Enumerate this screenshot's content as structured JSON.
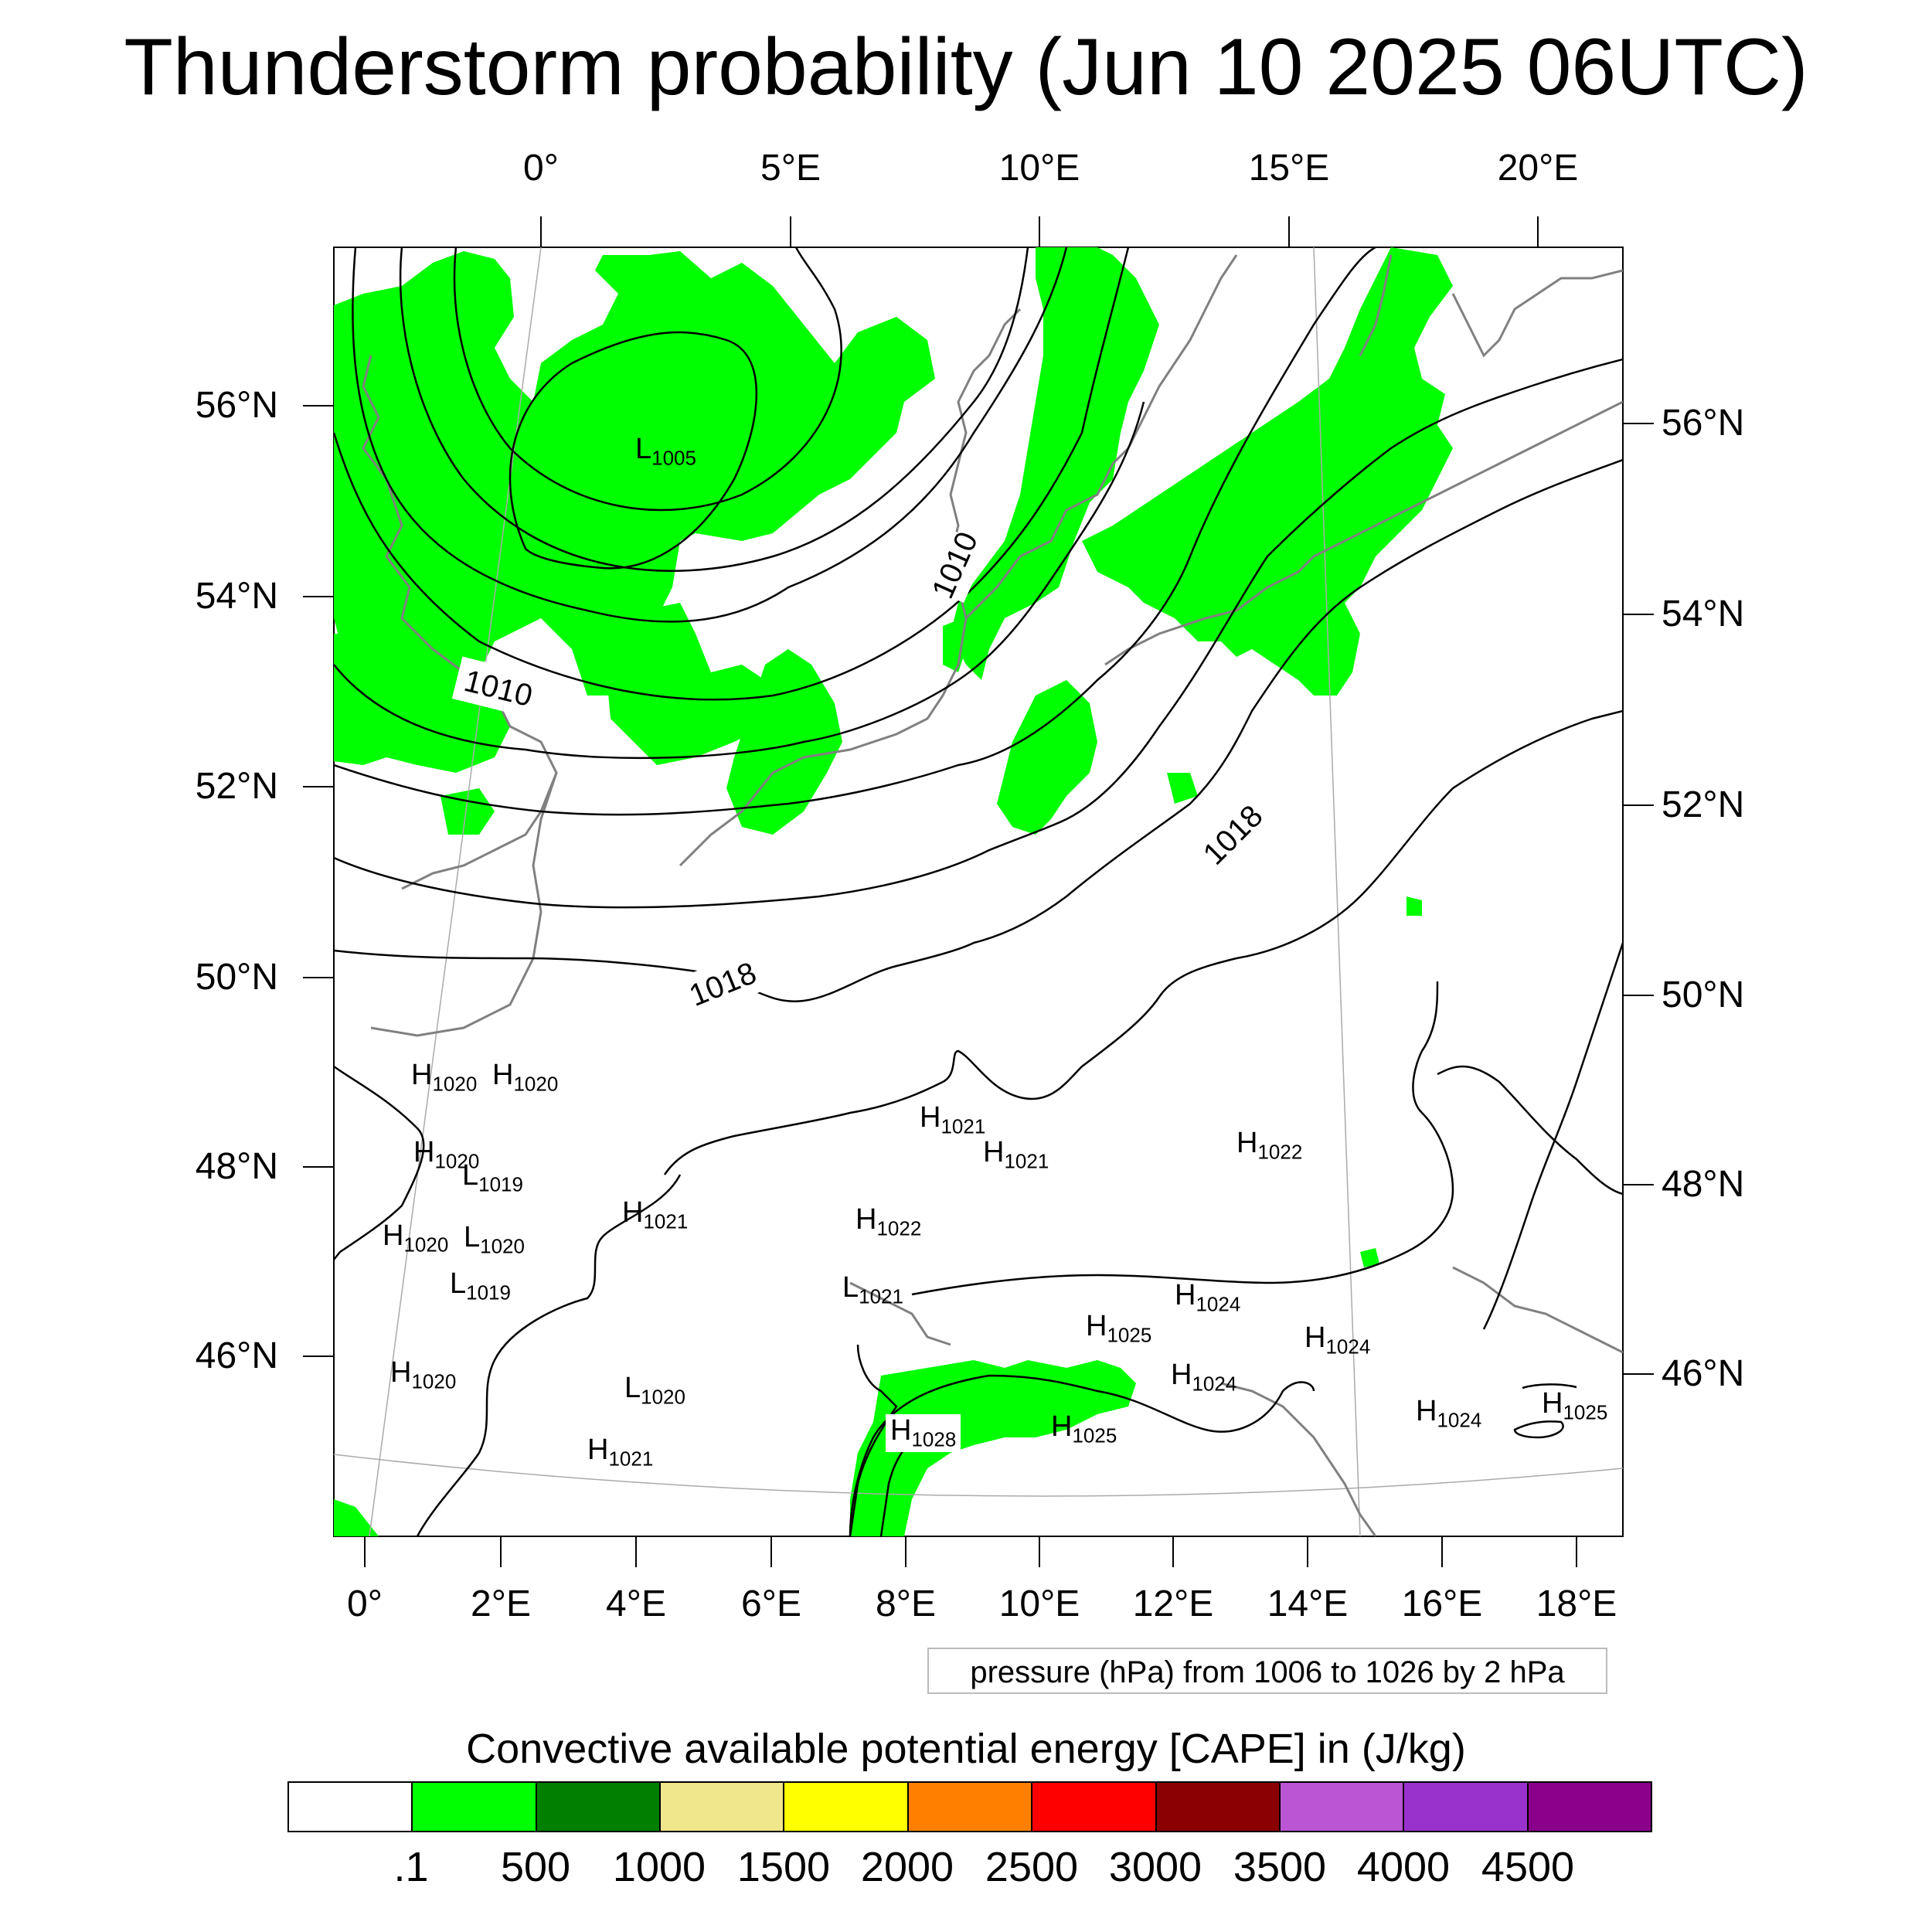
{
  "title": "Thunderstorm probability (Jun 10 2025 06UTC)",
  "axes": {
    "top_lon_ticks": [
      "0°",
      "5°E",
      "10°E",
      "15°E",
      "20°E"
    ],
    "bottom_lon_ticks": [
      "0°",
      "2°E",
      "4°E",
      "6°E",
      "8°E",
      "10°E",
      "12°E",
      "14°E",
      "16°E",
      "18°E"
    ],
    "left_lat_ticks": [
      "56°N",
      "54°N",
      "52°N",
      "50°N",
      "48°N",
      "46°N"
    ],
    "right_lat_ticks": [
      "56°N",
      "54°N",
      "52°N",
      "50°N",
      "48°N",
      "46°N"
    ]
  },
  "contour_info": "pressure (hPa) from 1006 to 1026 by 2 hPa",
  "contour_labels": [
    "1010",
    "1010",
    "1018",
    "1018"
  ],
  "pressure_centers": [
    {
      "type": "L",
      "value": "1005"
    },
    {
      "type": "H",
      "value": "1020"
    },
    {
      "type": "H",
      "value": "1020"
    },
    {
      "type": "H",
      "value": "1020"
    },
    {
      "type": "L",
      "value": "1019"
    },
    {
      "type": "H",
      "value": "1021"
    },
    {
      "type": "H",
      "value": "1020"
    },
    {
      "type": "L",
      "value": "1020"
    },
    {
      "type": "L",
      "value": "1019"
    },
    {
      "type": "H",
      "value": "1020"
    },
    {
      "type": "L",
      "value": "1020"
    },
    {
      "type": "H",
      "value": "1021"
    },
    {
      "type": "H",
      "value": "1021"
    },
    {
      "type": "H",
      "value": "1021"
    },
    {
      "type": "H",
      "value": "1022"
    },
    {
      "type": "L",
      "value": "1021"
    },
    {
      "type": "H",
      "value": "1028"
    },
    {
      "type": "H",
      "value": "1025"
    },
    {
      "type": "H",
      "value": "1025"
    },
    {
      "type": "H",
      "value": "1024"
    },
    {
      "type": "H",
      "value": "1024"
    },
    {
      "type": "H",
      "value": "1024"
    },
    {
      "type": "H",
      "value": "1022"
    },
    {
      "type": "H",
      "value": "1024"
    },
    {
      "type": "H",
      "value": "1025"
    }
  ],
  "legend": {
    "title": "Convective available potential energy [CAPE] in (J/kg)",
    "colors": [
      "#ffffff",
      "#00ff00",
      "#007f00",
      "#f0e68c",
      "#ffff00",
      "#ff8000",
      "#ff0000",
      "#8b0000",
      "#ba55d3",
      "#9932cc",
      "#8b008b"
    ],
    "labels": [
      ".1",
      "500",
      "1000",
      "1500",
      "2000",
      "2500",
      "3000",
      "3500",
      "4000",
      "4500"
    ]
  },
  "colors": {
    "cape_fill": "#00ff00",
    "coastline": "#808080",
    "isobar": "#000000",
    "grid": "#aaaaaa"
  }
}
